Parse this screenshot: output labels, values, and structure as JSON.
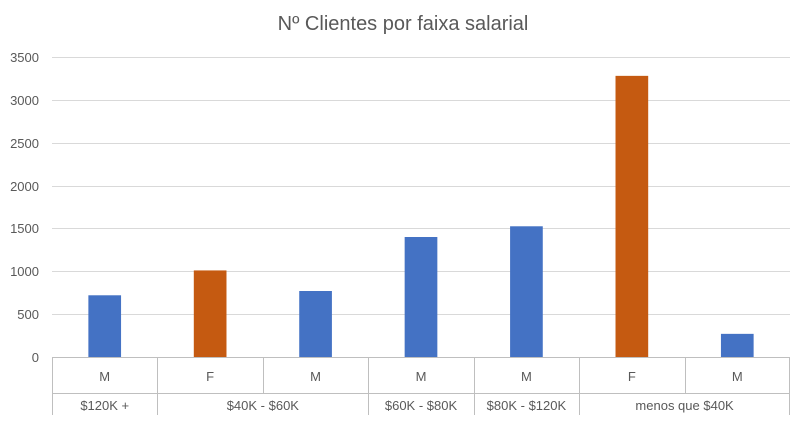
{
  "chart_data": {
    "type": "bar",
    "title": "Nº Clientes por faixa salarial",
    "xlabel": "",
    "ylabel": "",
    "ylim": [
      0,
      3500
    ],
    "yticks": [
      0,
      500,
      1000,
      1500,
      2000,
      2500,
      3000,
      3500
    ],
    "grid": true,
    "legend": "none",
    "colors": {
      "M": "#4472c4",
      "F": "#c55a11"
    },
    "groups": [
      {
        "label": "$120K +",
        "bars": [
          {
            "category": "M",
            "value": 720
          }
        ]
      },
      {
        "label": "$40K - $60K",
        "bars": [
          {
            "category": "F",
            "value": 1010
          },
          {
            "category": "M",
            "value": 770
          }
        ]
      },
      {
        "label": "$60K - $80K",
        "bars": [
          {
            "category": "M",
            "value": 1400
          }
        ]
      },
      {
        "label": "$80K - $120K",
        "bars": [
          {
            "category": "M",
            "value": 1525
          }
        ]
      },
      {
        "label": "menos que $40K",
        "bars": [
          {
            "category": "F",
            "value": 3280
          },
          {
            "category": "M",
            "value": 270
          }
        ]
      }
    ]
  }
}
